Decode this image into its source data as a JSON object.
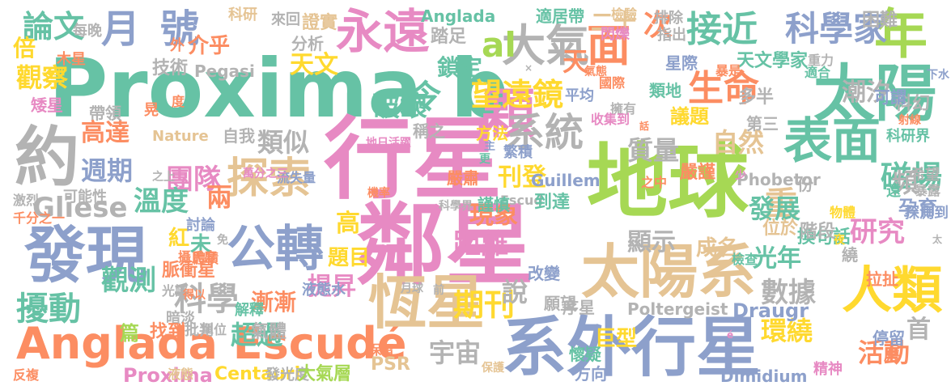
{
  "palette": {
    "green": "#66c2a5",
    "orange": "#fc8d62",
    "blue": "#8da0cb",
    "pink": "#e78ac3",
    "lime": "#a6d854",
    "yellow": "#ffd92f",
    "tan": "#e5c494",
    "gray": "#b3b3b3"
  },
  "words": [
    {
      "text": "Proxima b",
      "color": "green"
    },
    {
      "text": "行星",
      "color": "pink"
    },
    {
      "text": "地球",
      "color": "lime"
    },
    {
      "text": "鄰星",
      "color": "pink"
    },
    {
      "text": "太陽系",
      "color": "tan"
    },
    {
      "text": "系外行星",
      "color": "blue"
    },
    {
      "text": "Anglada Escudé",
      "color": "orange"
    },
    {
      "text": "發現",
      "color": "blue"
    },
    {
      "text": "約",
      "color": "gray"
    },
    {
      "text": "太陽",
      "color": "green"
    },
    {
      "text": "年",
      "color": "lime"
    },
    {
      "text": "人類",
      "color": "yellow"
    },
    {
      "text": "恆星",
      "color": "tan"
    },
    {
      "text": "表面",
      "color": "green"
    },
    {
      "text": "永遠",
      "color": "pink"
    },
    {
      "text": "公轉",
      "color": "blue"
    },
    {
      "text": "探索",
      "color": "tan"
    },
    {
      "text": "大氣",
      "color": "gray"
    },
    {
      "text": "面",
      "color": "orange"
    },
    {
      "text": "顆",
      "color": "pink"
    },
    {
      "text": "系統",
      "color": "gray"
    },
    {
      "text": "生命",
      "color": "orange"
    },
    {
      "text": "接近",
      "color": "green"
    },
    {
      "text": "科學家",
      "color": "blue"
    },
    {
      "text": "月",
      "color": "blue"
    },
    {
      "text": "號",
      "color": "blue"
    },
    {
      "text": "論文",
      "color": "green"
    },
    {
      "text": "倍",
      "color": "yellow"
    },
    {
      "text": "觀察",
      "color": "yellow"
    },
    {
      "text": "擾動",
      "color": "green"
    },
    {
      "text": "觀測",
      "color": "green"
    },
    {
      "text": "科學",
      "color": "gray"
    },
    {
      "text": "期刊",
      "color": "yellow"
    },
    {
      "text": "望遠鏡",
      "color": "yellow"
    },
    {
      "text": "破壞",
      "color": "green"
    },
    {
      "text": "天文",
      "color": "yellow"
    },
    {
      "text": "團隊",
      "color": "pink"
    },
    {
      "text": "類似",
      "color": "gray"
    },
    {
      "text": "高達",
      "color": "orange"
    },
    {
      "text": "週期",
      "color": "blue"
    },
    {
      "text": "溫度",
      "color": "green"
    },
    {
      "text": "兩",
      "color": "orange"
    },
    {
      "text": "重",
      "color": "tan"
    },
    {
      "text": "發展",
      "color": "green"
    },
    {
      "text": "研究",
      "color": "pink"
    },
    {
      "text": "數據",
      "color": "gray"
    },
    {
      "text": "環繞",
      "color": "yellow"
    },
    {
      "text": "首",
      "color": "gray"
    },
    {
      "text": "活動",
      "color": "orange"
    },
    {
      "text": "磁場",
      "color": "green"
    },
    {
      "text": "頻",
      "color": "gray"
    },
    {
      "text": "自然",
      "color": "tan"
    },
    {
      "text": "質量",
      "color": "gray"
    },
    {
      "text": "距離",
      "color": "pink"
    },
    {
      "text": "現象",
      "color": "orange"
    },
    {
      "text": "顯示",
      "color": "gray"
    },
    {
      "text": "光年",
      "color": "green"
    },
    {
      "text": "宇宙",
      "color": "gray"
    },
    {
      "text": "說",
      "color": "gray"
    },
    {
      "text": "超過",
      "color": "green"
    },
    {
      "text": "漸漸",
      "color": "orange"
    },
    {
      "text": "提昇",
      "color": "pink"
    },
    {
      "text": "刊登",
      "color": "yellow"
    },
    {
      "text": "Gliese",
      "color": "gray"
    },
    {
      "text": "高",
      "color": "yellow"
    },
    {
      "text": "紅",
      "color": "yellow"
    },
    {
      "text": "未",
      "color": "green"
    },
    {
      "text": "題目",
      "color": "yellow"
    },
    {
      "text": "脈衝星",
      "color": "orange"
    },
    {
      "text": "天",
      "color": "orange"
    },
    {
      "text": "al",
      "color": "lime"
    },
    {
      "text": "次",
      "color": "orange"
    },
    {
      "text": "二十",
      "color": "tan"
    },
    {
      "text": "潮汐",
      "color": "gray"
    },
    {
      "text": "天文學家",
      "color": "green"
    },
    {
      "text": "星際",
      "color": "blue"
    },
    {
      "text": "類地",
      "color": "green"
    },
    {
      "text": "議題",
      "color": "yellow"
    },
    {
      "text": "多半",
      "color": "gray"
    },
    {
      "text": "科幻",
      "color": "gray"
    },
    {
      "text": "令",
      "color": "green"
    },
    {
      "text": "鎖定",
      "color": "green"
    },
    {
      "text": "踏足",
      "color": "gray"
    },
    {
      "text": "介乎",
      "color": "orange"
    },
    {
      "text": "外",
      "color": "orange"
    },
    {
      "text": "證實",
      "color": "tan"
    },
    {
      "text": "科研",
      "color": "tan"
    },
    {
      "text": "Anglada",
      "color": "green"
    },
    {
      "text": "適居帶",
      "color": "green"
    },
    {
      "text": "Pegasi",
      "color": "gray"
    },
    {
      "text": "技術",
      "color": "gray"
    },
    {
      "text": "木星",
      "color": "orange"
    },
    {
      "text": "帶領",
      "color": "gray"
    },
    {
      "text": "矮星",
      "color": "pink"
    },
    {
      "text": "Nature",
      "color": "tan"
    },
    {
      "text": "自我",
      "color": "gray"
    },
    {
      "text": "巨型",
      "color": "yellow"
    },
    {
      "text": "序星",
      "color": "gray"
    },
    {
      "text": "Poltergeist",
      "color": "gray"
    },
    {
      "text": "Draugr",
      "color": "blue"
    },
    {
      "text": "Dimidium",
      "color": "blue"
    },
    {
      "text": "Centauri",
      "color": "yellow"
    },
    {
      "text": "Proxima",
      "color": "pink"
    },
    {
      "text": "PSR",
      "color": "tan"
    },
    {
      "text": "方向",
      "color": "blue"
    },
    {
      "text": "Guillem",
      "color": "blue"
    },
    {
      "text": "Phobetor",
      "color": "gray"
    },
    {
      "text": "Escud",
      "color": "gray"
    },
    {
      "text": "氣體",
      "color": "gray"
    },
    {
      "text": "解釋",
      "color": "green"
    },
    {
      "text": "暗淡",
      "color": "gray"
    },
    {
      "text": "找到",
      "color": "orange"
    },
    {
      "text": "篇",
      "color": "lime"
    },
    {
      "text": "批判",
      "color": "gray"
    },
    {
      "text": "液態水",
      "color": "blue"
    },
    {
      "text": "可能性",
      "color": "gray"
    },
    {
      "text": "討論",
      "color": "blue"
    },
    {
      "text": "激烈",
      "color": "gray"
    },
    {
      "text": "千分之一",
      "color": "orange"
    },
    {
      "text": "反複",
      "color": "orange"
    },
    {
      "text": "到達",
      "color": "green"
    },
    {
      "text": "謹慎",
      "color": "green"
    },
    {
      "text": "嚴肅",
      "color": "orange"
    },
    {
      "text": "嚴謹",
      "color": "orange"
    },
    {
      "text": "換句話",
      "color": "green"
    },
    {
      "text": "拉扯",
      "color": "orange"
    },
    {
      "text": "希望",
      "color": "gray"
    },
    {
      "text": "遠",
      "color": "green"
    },
    {
      "text": "孕育",
      "color": "blue"
    },
    {
      "text": "成名",
      "color": "tan"
    },
    {
      "text": "位於",
      "color": "tan"
    },
    {
      "text": "階段",
      "color": "gray"
    },
    {
      "text": "檢查",
      "color": "green"
    },
    {
      "text": "改變",
      "color": "blue"
    },
    {
      "text": "方法",
      "color": "yellow"
    },
    {
      "text": "稱之",
      "color": "gray"
    },
    {
      "text": "平均",
      "color": "blue"
    },
    {
      "text": "擁有",
      "color": "gray"
    },
    {
      "text": "收集到",
      "color": "pink"
    },
    {
      "text": "國際",
      "color": "orange"
    },
    {
      "text": "可謂",
      "color": "blue"
    },
    {
      "text": "份",
      "color": "gray"
    },
    {
      "text": "第三",
      "color": "gray"
    },
    {
      "text": "困難",
      "color": "gray"
    },
    {
      "text": "排除",
      "color": "gray"
    },
    {
      "text": "指出",
      "color": "gray"
    },
    {
      "text": "檢驗",
      "color": "tan"
    },
    {
      "text": "閃爍",
      "color": "pink"
    },
    {
      "text": "重力",
      "color": "gray"
    },
    {
      "text": "適合",
      "color": "green"
    },
    {
      "text": "分析",
      "color": "gray"
    },
    {
      "text": "來回",
      "color": "gray"
    },
    {
      "text": "每晚",
      "color": "gray"
    },
    {
      "text": "一半",
      "color": "yellow"
    },
    {
      "text": "流失量",
      "color": "blue"
    },
    {
      "text": "萬分之三",
      "color": "pink"
    },
    {
      "text": "地日活躍",
      "color": "pink"
    },
    {
      "text": "科學界",
      "color": "gray"
    },
    {
      "text": "保留",
      "color": "orange"
    },
    {
      "text": "前",
      "color": "gray"
    },
    {
      "text": "月球",
      "color": "gray"
    },
    {
      "text": "保護",
      "color": "tan"
    },
    {
      "text": "液態",
      "color": "tan"
    },
    {
      "text": "發光度",
      "color": "gray"
    },
    {
      "text": "大氣層",
      "color": "lime"
    },
    {
      "text": "單位",
      "color": "gray"
    },
    {
      "text": "光譜",
      "color": "gray"
    },
    {
      "text": "得以",
      "color": "orange"
    },
    {
      "text": "攝氏度",
      "color": "orange"
    },
    {
      "text": "體積",
      "color": "orange"
    },
    {
      "text": "免",
      "color": "gray"
    },
    {
      "text": "機率",
      "color": "orange"
    },
    {
      "text": "之上",
      "color": "gray"
    },
    {
      "text": "更",
      "color": "green"
    },
    {
      "text": "主",
      "color": "blue"
    },
    {
      "text": "願望",
      "color": "gray"
    },
    {
      "text": "懷疑",
      "color": "green"
    },
    {
      "text": "停留",
      "color": "blue"
    },
    {
      "text": "應",
      "color": "orange"
    },
    {
      "text": "暴露",
      "color": "gray"
    },
    {
      "text": "探測到",
      "color": "blue"
    },
    {
      "text": "少",
      "color": "pink"
    },
    {
      "text": "物體",
      "color": "yellow"
    },
    {
      "text": "夜",
      "color": "yellow"
    },
    {
      "text": "繞",
      "color": "gray"
    },
    {
      "text": "之中",
      "color": "orange"
    },
    {
      "text": "繁積",
      "color": "blue"
    },
    {
      "text": "話",
      "color": "orange"
    },
    {
      "text": "射線",
      "color": "orange"
    },
    {
      "text": "科研界",
      "color": "green"
    },
    {
      "text": "下水",
      "color": "blue"
    },
    {
      "text": "暴是",
      "color": "orange"
    },
    {
      "text": "氣態",
      "color": "orange"
    },
    {
      "text": "晃",
      "color": "orange"
    },
    {
      "text": "度",
      "color": "orange"
    },
    {
      "text": "精神",
      "color": "pink"
    },
    {
      "text": "é",
      "color": "pink"
    },
    {
      "text": "太",
      "color": "gray"
    },
    {
      "text": "×",
      "color": "gray"
    }
  ]
}
